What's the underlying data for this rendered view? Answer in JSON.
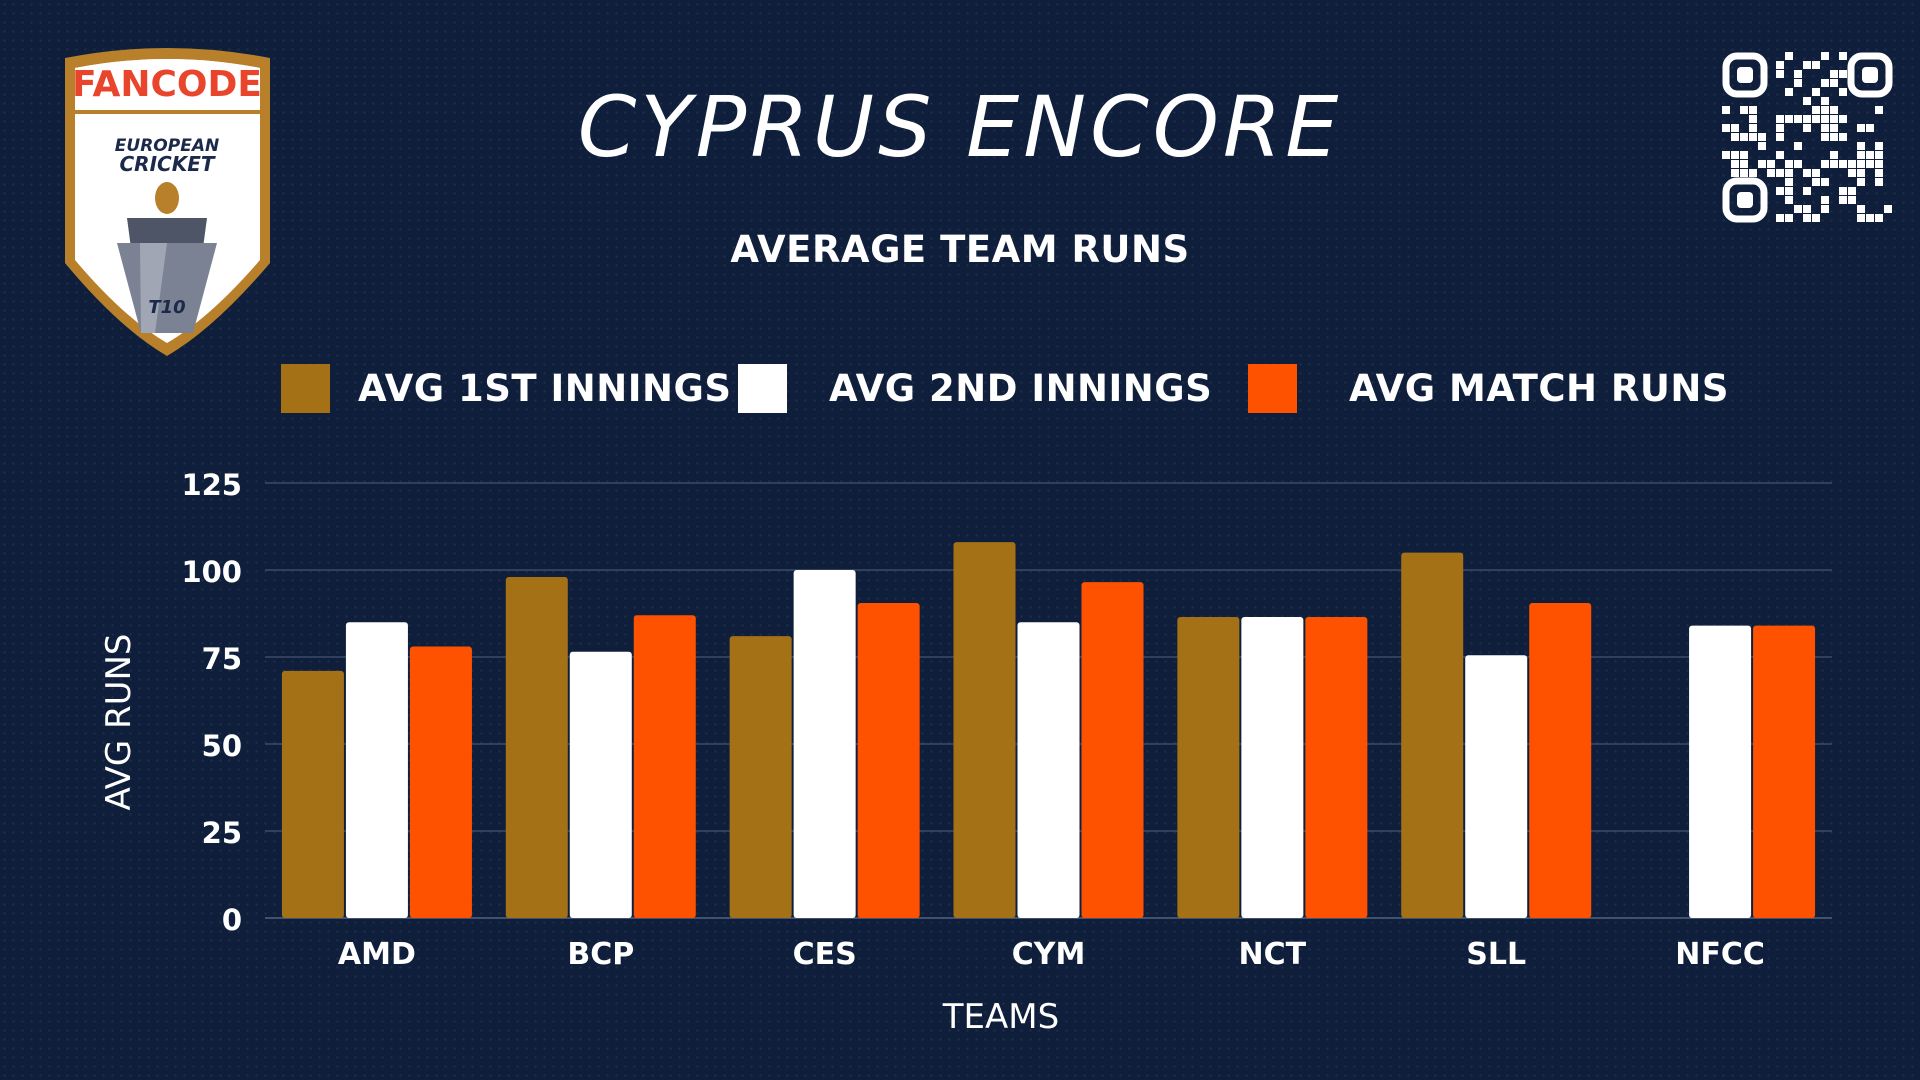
{
  "header": {
    "title": "CYPRUS ENCORE",
    "logo_brand": "FANCODE",
    "logo_line1": "EUROPEAN",
    "logo_line2": "CRICKET",
    "logo_badge": "T10"
  },
  "colors": {
    "background": "#0f1f3b",
    "series_1st": "#a47116",
    "series_2nd": "#ffffff",
    "series_match": "#ff5200",
    "gridline": "#3b4a66"
  },
  "chart_data": {
    "type": "bar",
    "title": "AVERAGE TEAM RUNS",
    "xlabel": "TEAMS",
    "ylabel": "AVG RUNS",
    "ylim": [
      0,
      125
    ],
    "yticks": [
      0,
      25,
      50,
      75,
      100,
      125
    ],
    "grid": true,
    "legend_position": "top",
    "categories": [
      "AMD",
      "BCP",
      "CES",
      "CYM",
      "NCT",
      "SLL",
      "NFCC"
    ],
    "series": [
      {
        "name": "AVG 1ST INNINGS",
        "color": "#a47116",
        "values": [
          71,
          98,
          81,
          108,
          86.5,
          105,
          0
        ]
      },
      {
        "name": "AVG 2ND INNINGS",
        "color": "#ffffff",
        "values": [
          85,
          76.5,
          100,
          85,
          86.5,
          75.5,
          84
        ]
      },
      {
        "name": "AVG MATCH RUNS",
        "color": "#ff5200",
        "values": [
          78,
          87,
          90.5,
          96.5,
          86.5,
          90.5,
          84
        ]
      }
    ]
  }
}
